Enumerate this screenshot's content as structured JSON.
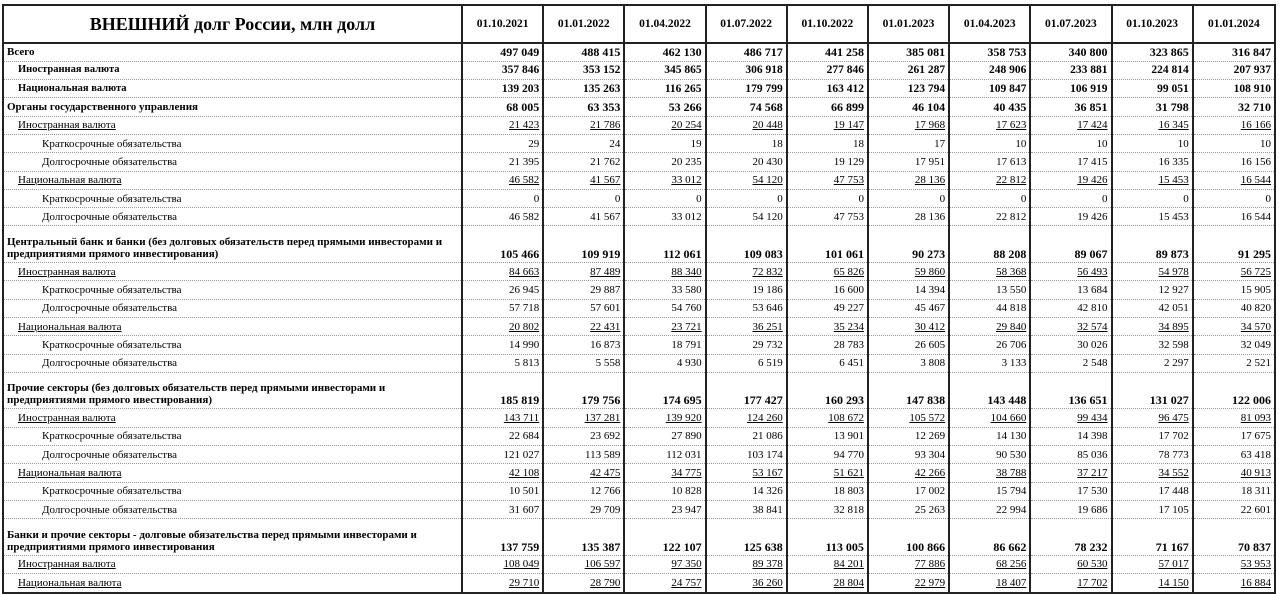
{
  "title": "ВНЕШНИЙ долг России, млн долл",
  "columns": [
    "01.10.2021",
    "01.01.2022",
    "01.04.2022",
    "01.07.2022",
    "01.10.2022",
    "01.01.2023",
    "01.04.2023",
    "01.07.2023",
    "01.10.2023",
    "01.01.2024"
  ],
  "rows": [
    {
      "label": "Всего",
      "style": "l0",
      "values": [
        "497 049",
        "488 415",
        "462 130",
        "486 717",
        "441 258",
        "385 081",
        "358 753",
        "340 800",
        "323 865",
        "316 847"
      ]
    },
    {
      "label": "Иностранная валюта",
      "style": "l1b",
      "values": [
        "357 846",
        "353 152",
        "345 865",
        "306 918",
        "277 846",
        "261 287",
        "248 906",
        "233 881",
        "224 814",
        "207 937"
      ]
    },
    {
      "label": "Национальная валюта",
      "style": "l1b",
      "values": [
        "139 203",
        "135 263",
        "116 265",
        "179 799",
        "163 412",
        "123 794",
        "109 847",
        "106 919",
        "99 051",
        "108 910"
      ]
    },
    {
      "label": "Органы государственного управления",
      "style": "l0",
      "values": [
        "68 005",
        "63 353",
        "53 266",
        "74 568",
        "66 899",
        "46 104",
        "40 435",
        "36 851",
        "31 798",
        "32 710"
      ]
    },
    {
      "label": "Иностранная валюта",
      "style": "l1u",
      "values": [
        "21 423",
        "21 786",
        "20 254",
        "20 448",
        "19 147",
        "17 968",
        "17 623",
        "17 424",
        "16 345",
        "16 166"
      ]
    },
    {
      "label": "Краткосрочные обязательства",
      "style": "l2",
      "values": [
        "29",
        "24",
        "19",
        "18",
        "18",
        "17",
        "10",
        "10",
        "10",
        "10"
      ]
    },
    {
      "label": "Долгосрочные обязательства",
      "style": "l2",
      "values": [
        "21 395",
        "21 762",
        "20 235",
        "20 430",
        "19 129",
        "17 951",
        "17 613",
        "17 415",
        "16 335",
        "16 156"
      ]
    },
    {
      "label": "Национальная валюта",
      "style": "l1u",
      "values": [
        "46 582",
        "41 567",
        "33 012",
        "54 120",
        "47 753",
        "28 136",
        "22 812",
        "19 426",
        "15 453",
        "16 544"
      ]
    },
    {
      "label": "Краткосрочные обязательства",
      "style": "l2",
      "values": [
        "0",
        "0",
        "0",
        "0",
        "0",
        "0",
        "0",
        "0",
        "0",
        "0"
      ]
    },
    {
      "label": "Долгосрочные обязательства",
      "style": "l2",
      "values": [
        "46 582",
        "41 567",
        "33 012",
        "54 120",
        "47 753",
        "28 136",
        "22 812",
        "19 426",
        "15 453",
        "16 544"
      ]
    },
    {
      "label": "Центральный банк и банки (без долговых обязательств перед прямыми инвесторами и предприятиями прямого инвестирования)",
      "style": "l0 double",
      "values": [
        "105 466",
        "109 919",
        "112 061",
        "109 083",
        "101 061",
        "90 273",
        "88 208",
        "89 067",
        "89 873",
        "91 295"
      ]
    },
    {
      "label": "Иностранная валюта",
      "style": "l1u",
      "values": [
        "84 663",
        "87 489",
        "88 340",
        "72 832",
        "65 826",
        "59 860",
        "58 368",
        "56 493",
        "54 978",
        "56 725"
      ]
    },
    {
      "label": "Краткосрочные обязательства",
      "style": "l2",
      "values": [
        "26 945",
        "29 887",
        "33 580",
        "19 186",
        "16 600",
        "14 394",
        "13 550",
        "13 684",
        "12 927",
        "15 905"
      ]
    },
    {
      "label": "Долгосрочные обязательства",
      "style": "l2",
      "values": [
        "57 718",
        "57 601",
        "54 760",
        "53 646",
        "49 227",
        "45 467",
        "44 818",
        "42 810",
        "42 051",
        "40 820"
      ]
    },
    {
      "label": "Национальная валюта",
      "style": "l1u",
      "values": [
        "20 802",
        "22 431",
        "23 721",
        "36 251",
        "35 234",
        "30 412",
        "29 840",
        "32 574",
        "34 895",
        "34 570"
      ]
    },
    {
      "label": "Краткосрочные обязательства",
      "style": "l2",
      "values": [
        "14 990",
        "16 873",
        "18 791",
        "29 732",
        "28 783",
        "26 605",
        "26 706",
        "30 026",
        "32 598",
        "32 049"
      ]
    },
    {
      "label": "Долгосрочные обязательства",
      "style": "l2",
      "values": [
        "5 813",
        "5 558",
        "4 930",
        "6 519",
        "6 451",
        "3 808",
        "3 133",
        "2 548",
        "2 297",
        "2 521"
      ]
    },
    {
      "label": "Прочие секторы (без долговых обязательств перед прямыми инвесторами и предприятиями прямого ивестирования)",
      "style": "l0 double",
      "values": [
        "185 819",
        "179 756",
        "174 695",
        "177 427",
        "160 293",
        "147 838",
        "143 448",
        "136 651",
        "131 027",
        "122 006"
      ]
    },
    {
      "label": "Иностранная валюта",
      "style": "l1u",
      "values": [
        "143 711",
        "137 281",
        "139 920",
        "124 260",
        "108 672",
        "105 572",
        "104 660",
        "99 434",
        "96 475",
        "81 093"
      ]
    },
    {
      "label": "Краткосрочные обязательства",
      "style": "l2",
      "values": [
        "22 684",
        "23 692",
        "27 890",
        "21 086",
        "13 901",
        "12 269",
        "14 130",
        "14 398",
        "17 702",
        "17 675"
      ]
    },
    {
      "label": "Долгосрочные обязательства",
      "style": "l2",
      "values": [
        "121 027",
        "113 589",
        "112 031",
        "103 174",
        "94 770",
        "93 304",
        "90 530",
        "85 036",
        "78 773",
        "63 418"
      ]
    },
    {
      "label": "Национальная валюта",
      "style": "l1u",
      "values": [
        "42 108",
        "42 475",
        "34 775",
        "53 167",
        "51 621",
        "42 266",
        "38 788",
        "37 217",
        "34 552",
        "40 913"
      ]
    },
    {
      "label": "Краткосрочные обязательства",
      "style": "l2",
      "values": [
        "10 501",
        "12 766",
        "10 828",
        "14 326",
        "18 803",
        "17 002",
        "15 794",
        "17 530",
        "17 448",
        "18 311"
      ]
    },
    {
      "label": "Долгосрочные обязательства",
      "style": "l2",
      "values": [
        "31 607",
        "29 709",
        "23 947",
        "38 841",
        "32 818",
        "25 263",
        "22 994",
        "19 686",
        "17 105",
        "22 601"
      ]
    },
    {
      "label": "Банки и прочие секторы - долговые обязательства перед прямыми инвесторами и предприятиями прямого инвестирования",
      "style": "l0 double",
      "values": [
        "137 759",
        "135 387",
        "122 107",
        "125 638",
        "113 005",
        "100 866",
        "86 662",
        "78 232",
        "71 167",
        "70 837"
      ]
    },
    {
      "label": "Иностранная валюта",
      "style": "l1u",
      "values": [
        "108 049",
        "106 597",
        "97 350",
        "89 378",
        "84 201",
        "77 886",
        "68 256",
        "60 530",
        "57 017",
        "53 953"
      ]
    },
    {
      "label": "Национальная валюта",
      "style": "l1u last",
      "values": [
        "29 710",
        "28 790",
        "24 757",
        "36 260",
        "28 804",
        "22 979",
        "18 407",
        "17 702",
        "14 150",
        "16 884"
      ]
    }
  ]
}
